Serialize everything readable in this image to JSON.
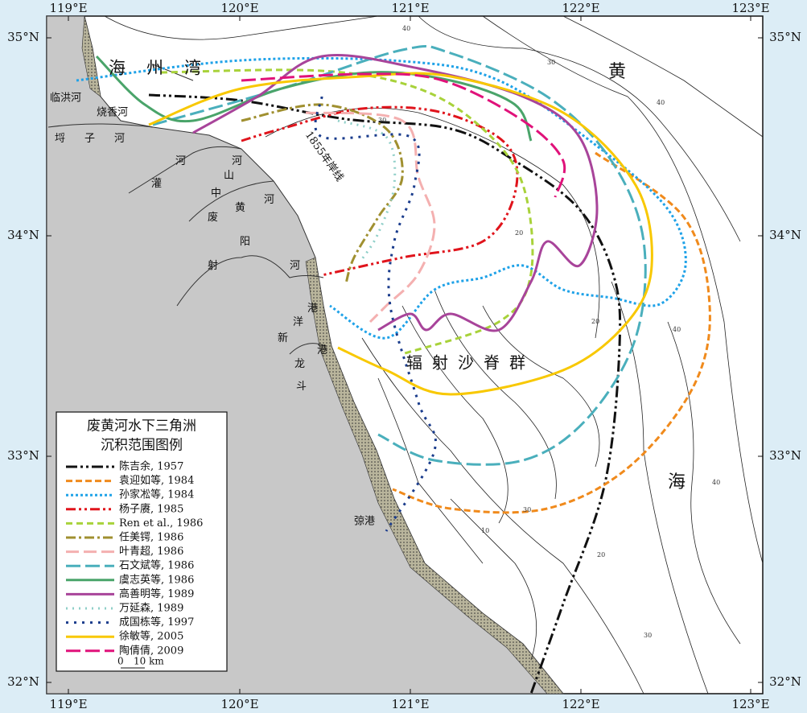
{
  "map": {
    "lon_labels": [
      "119°E",
      "120°E",
      "121°E",
      "122°E",
      "123°E"
    ],
    "lat_labels": [
      "35°N",
      "34°N",
      "33°N",
      "32°N"
    ],
    "places": [
      "海州湾",
      "临洪河",
      "烧香河",
      "埒子河",
      "灌河",
      "中山河",
      "废黄河",
      "射阳河",
      "新洋港",
      "斗龙港",
      "1855年岸线",
      "辐射沙脊群",
      "黄",
      "海",
      "弶港"
    ],
    "depth_labels": [
      "10",
      "20",
      "30",
      "40"
    ],
    "legend": {
      "title": [
        "废黄河水下三角洲",
        "沉积范围图例"
      ],
      "items": [
        {
          "label": "陈吉余, 1957",
          "color": "#111111"
        },
        {
          "label": "袁迎如等, 1984",
          "color": "#f08a1c"
        },
        {
          "label": "孙家凇等, 1984",
          "color": "#1fa2e8"
        },
        {
          "label": "杨子赓, 1985",
          "color": "#e0141c"
        },
        {
          "label": "Ren et al., 1986",
          "color": "#a8d23a"
        },
        {
          "label": "任美锷, 1986",
          "color": "#a09030"
        },
        {
          "label": "叶青超, 1986",
          "color": "#f4b0b0"
        },
        {
          "label": "石文斌等, 1986",
          "color": "#4aafbc"
        },
        {
          "label": "虞志英等, 1986",
          "color": "#4aa46a"
        },
        {
          "label": "高善明等, 1989",
          "color": "#a8449a"
        },
        {
          "label": "万延森, 1989",
          "color": "#8fcfc8"
        },
        {
          "label": "成国栋等, 1997",
          "color": "#1a3c8c"
        },
        {
          "label": "徐敏等, 2005",
          "color": "#f8c800"
        },
        {
          "label": "陶倩倩, 2009",
          "color": "#e0127a"
        }
      ],
      "scale": [
        "0",
        "10 km"
      ]
    }
  }
}
